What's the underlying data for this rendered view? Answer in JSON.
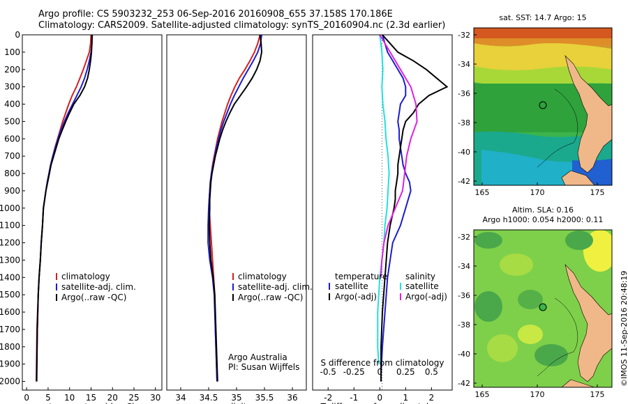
{
  "header": {
    "line1": "Argo profile: CS 5903232_253 06-Sep-2016 20160908_655 37.158S 170.186E",
    "line2": "Climatology: CARS2009. Satellite-adjusted climatology: synTS_20160904.nc (2.3d earlier)"
  },
  "credit": {
    "institution": "Argo Australia",
    "pi": "PI: Susan Wijffels"
  },
  "footer_stamp": "©IMOS 11-Sep-2016 20:48:19",
  "colors": {
    "climatology": "#d42020",
    "satellite": "#1c1cd0",
    "argo": "#000000",
    "sat_salinity": "#22e0e0",
    "argo_salinity": "#e020e0"
  },
  "chart_data": [
    {
      "id": "temperature",
      "type": "line",
      "xlabel": "temperature (deg C)",
      "ylabel": "",
      "xlim": [
        -1,
        31.5
      ],
      "ylim": [
        2050,
        0
      ],
      "xticks": [
        0,
        5,
        10,
        15,
        20,
        25,
        30
      ],
      "yticks": [
        0,
        100,
        200,
        300,
        400,
        500,
        600,
        700,
        800,
        900,
        1000,
        1100,
        1200,
        1300,
        1400,
        1500,
        1600,
        1700,
        1800,
        1900,
        2000
      ],
      "legend": [
        "climatology",
        "satellite-adj. clim.",
        "Argo(..raw -QC)"
      ],
      "series": [
        {
          "name": "climatology",
          "color": "#d42020",
          "x": [
            15.0,
            14.9,
            14.6,
            13.9,
            13.2,
            12.4,
            11.6,
            10.6,
            9.8,
            9.1,
            8.4,
            7.8,
            7.2,
            6.6,
            6.1,
            5.6,
            5.2,
            4.8,
            4.5,
            4.2,
            3.9,
            3.7,
            3.4,
            3.2,
            2.9,
            2.7,
            2.4,
            2.3,
            2.25
          ],
          "y": [
            0,
            50,
            100,
            150,
            200,
            250,
            300,
            350,
            400,
            450,
            500,
            550,
            600,
            650,
            700,
            750,
            800,
            850,
            900,
            950,
            1000,
            1100,
            1200,
            1300,
            1400,
            1500,
            1700,
            1900,
            2000
          ]
        },
        {
          "name": "satellite-adj. clim.",
          "color": "#1c1cd0",
          "x": [
            15.3,
            15.2,
            15.0,
            14.6,
            14.1,
            13.5,
            12.7,
            11.7,
            10.7,
            9.7,
            8.8,
            8.0,
            7.3,
            6.7,
            6.1,
            5.6,
            5.2,
            4.8,
            4.5,
            4.2,
            3.9,
            3.7,
            3.4,
            3.2,
            2.9,
            2.7,
            2.5,
            2.35,
            2.3
          ],
          "y": [
            0,
            50,
            100,
            150,
            200,
            250,
            300,
            350,
            400,
            450,
            500,
            550,
            600,
            650,
            700,
            750,
            800,
            850,
            900,
            950,
            1000,
            1100,
            1200,
            1300,
            1400,
            1500,
            1700,
            1900,
            2000
          ]
        },
        {
          "name": "Argo(..raw -QC)",
          "color": "#000000",
          "x": [
            15.2,
            15.2,
            15.1,
            14.9,
            14.6,
            14.2,
            13.5,
            12.4,
            11.0,
            10.0,
            9.1,
            8.3,
            7.5,
            6.9,
            6.3,
            5.7,
            5.3,
            4.9,
            4.5,
            4.2,
            3.9,
            3.7,
            3.4,
            3.2,
            2.9,
            2.7,
            2.5,
            2.4,
            2.35
          ],
          "y": [
            0,
            50,
            100,
            150,
            200,
            250,
            300,
            350,
            400,
            450,
            500,
            550,
            600,
            650,
            700,
            750,
            800,
            850,
            900,
            950,
            1000,
            1100,
            1200,
            1300,
            1400,
            1500,
            1700,
            1900,
            2000
          ]
        }
      ]
    },
    {
      "id": "salinity",
      "type": "line",
      "xlabel": "salinity",
      "xlim": [
        33.75,
        36.25
      ],
      "ylim": [
        2050,
        0
      ],
      "xticks": [
        34,
        34.5,
        35,
        35.5,
        36
      ],
      "legend": [
        "climatology",
        "satellite-adj. clim.",
        "Argo(..raw -QC)"
      ],
      "series": [
        {
          "name": "climatology",
          "color": "#d42020",
          "x": [
            35.42,
            35.38,
            35.32,
            35.24,
            35.15,
            35.05,
            34.97,
            34.9,
            34.84,
            34.79,
            34.74,
            34.7,
            34.66,
            34.63,
            34.6,
            34.57,
            34.55,
            34.53,
            34.52,
            34.51,
            34.51,
            34.53,
            34.55,
            34.57,
            34.59,
            34.61,
            34.62,
            34.64,
            34.65
          ],
          "y": [
            0,
            50,
            100,
            150,
            200,
            250,
            300,
            350,
            400,
            450,
            500,
            550,
            600,
            650,
            700,
            750,
            800,
            850,
            900,
            950,
            1000,
            1100,
            1200,
            1300,
            1400,
            1500,
            1700,
            1900,
            2000
          ]
        },
        {
          "name": "satellite-adj. clim.",
          "color": "#1c1cd0",
          "x": [
            35.45,
            35.43,
            35.38,
            35.3,
            35.21,
            35.12,
            35.04,
            34.96,
            34.89,
            34.83,
            34.77,
            34.72,
            34.68,
            34.64,
            34.61,
            34.58,
            34.55,
            34.53,
            34.52,
            34.51,
            34.5,
            34.49,
            34.49,
            34.52,
            34.57,
            34.6,
            34.62,
            34.64,
            34.65
          ],
          "y": [
            0,
            50,
            100,
            150,
            200,
            250,
            300,
            350,
            400,
            450,
            500,
            550,
            600,
            650,
            700,
            750,
            800,
            850,
            900,
            950,
            1000,
            1100,
            1200,
            1300,
            1400,
            1500,
            1700,
            1900,
            2000
          ]
        },
        {
          "name": "Argo(..raw -QC)",
          "color": "#000000",
          "x": [
            35.42,
            35.44,
            35.45,
            35.42,
            35.36,
            35.28,
            35.18,
            35.07,
            34.96,
            34.88,
            34.81,
            34.75,
            34.7,
            34.66,
            34.62,
            34.59,
            34.56,
            34.54,
            34.53,
            34.52,
            34.52,
            34.51,
            34.52,
            34.54,
            34.58,
            34.61,
            34.63,
            34.65,
            34.66
          ],
          "y": [
            0,
            50,
            100,
            150,
            200,
            250,
            300,
            350,
            400,
            450,
            500,
            550,
            600,
            650,
            700,
            750,
            800,
            850,
            900,
            950,
            1000,
            1100,
            1200,
            1300,
            1400,
            1500,
            1700,
            1900,
            2000
          ]
        }
      ]
    },
    {
      "id": "difference",
      "type": "line",
      "xlabel": "T difference from climatology",
      "x2label": "S difference from climatology",
      "xlim": [
        -2.6,
        2.8
      ],
      "ylim": [
        2050,
        0
      ],
      "xticks": [
        -2,
        -1,
        0,
        1,
        2
      ],
      "x2ticks": [
        -0.5,
        -0.25,
        0,
        0.25,
        0.5
      ],
      "legend": {
        "temperature": [
          "temperature",
          "satellite",
          "Argo(-adj)"
        ],
        "salinity": [
          "salinity",
          "satellite",
          "Argo(-adj)"
        ]
      },
      "series": [
        {
          "name": "temperature satellite",
          "color": "#1c1cd0",
          "x": [
            0.1,
            0.2,
            0.3,
            0.5,
            0.7,
            0.9,
            1.0,
            1.0,
            0.8,
            0.75,
            0.7,
            0.75,
            0.75,
            0.8,
            0.85,
            0.9,
            1.0,
            1.15,
            1.2,
            1.1,
            1.0,
            0.8,
            0.5,
            0.3,
            0.2,
            0.1,
            0.05,
            0.05
          ],
          "y": [
            0,
            50,
            100,
            150,
            200,
            250,
            300,
            350,
            400,
            450,
            500,
            550,
            600,
            650,
            700,
            750,
            800,
            850,
            900,
            950,
            1000,
            1100,
            1200,
            1400,
            1600,
            1800,
            1950,
            2000
          ]
        },
        {
          "name": "temperature Argo(-adj)",
          "color": "#000000",
          "x": [
            0.1,
            0.4,
            0.7,
            1.3,
            1.8,
            2.2,
            2.6,
            1.9,
            1.5,
            1.3,
            1.0,
            0.9,
            0.85,
            0.8,
            0.75,
            0.7,
            0.7,
            0.65,
            0.6,
            0.6,
            0.55,
            0.4,
            0.3,
            0.2,
            0.1,
            0.05,
            0.05
          ],
          "y": [
            0,
            50,
            100,
            150,
            200,
            250,
            300,
            350,
            400,
            450,
            500,
            550,
            600,
            650,
            700,
            750,
            800,
            850,
            900,
            950,
            1000,
            1100,
            1200,
            1400,
            1600,
            1800,
            2000
          ]
        },
        {
          "name": "salinity satellite",
          "color": "#22e0e0",
          "x": [
            0.0,
            0.02,
            0.03,
            0.02,
            0.03,
            0.05,
            0.06,
            0.08,
            0.09,
            0.08,
            0.07,
            0.05,
            0.04,
            0.02,
            0.0,
            -0.01,
            -0.02,
            -0.02,
            -0.02,
            -0.01
          ],
          "y": [
            0,
            100,
            200,
            300,
            400,
            500,
            600,
            700,
            800,
            900,
            1000,
            1100,
            1200,
            1300,
            1400,
            1500,
            1600,
            1700,
            1800,
            1900
          ]
        },
        {
          "name": "salinity Argo(-adj)",
          "color": "#e020e0",
          "x": [
            0.0,
            0.1,
            0.2,
            0.3,
            0.35,
            0.36,
            0.3,
            0.26,
            0.24,
            0.22,
            0.15,
            0.08,
            0.04,
            0.02,
            0.01
          ],
          "y": [
            0,
            100,
            200,
            300,
            400,
            500,
            600,
            700,
            800,
            900,
            1000,
            1100,
            1200,
            1300,
            1400
          ]
        }
      ]
    }
  ],
  "maps": [
    {
      "id": "sst",
      "title": "sat. SST: 14.7  Argo: 15",
      "ylabels": [
        "-32",
        "-34",
        "-36",
        "-38",
        "-40",
        "-42"
      ],
      "xlabels": [
        "165",
        "170",
        "175"
      ]
    },
    {
      "id": "sla",
      "title": "Altim. SLA: 0.16",
      "subtitle": "Argo h1000: 0.054 h2000: 0.11",
      "ylabels": [
        "-32",
        "-34",
        "-36",
        "-38",
        "-40",
        "-42"
      ],
      "xlabels": [
        "165",
        "170",
        "175"
      ]
    }
  ]
}
